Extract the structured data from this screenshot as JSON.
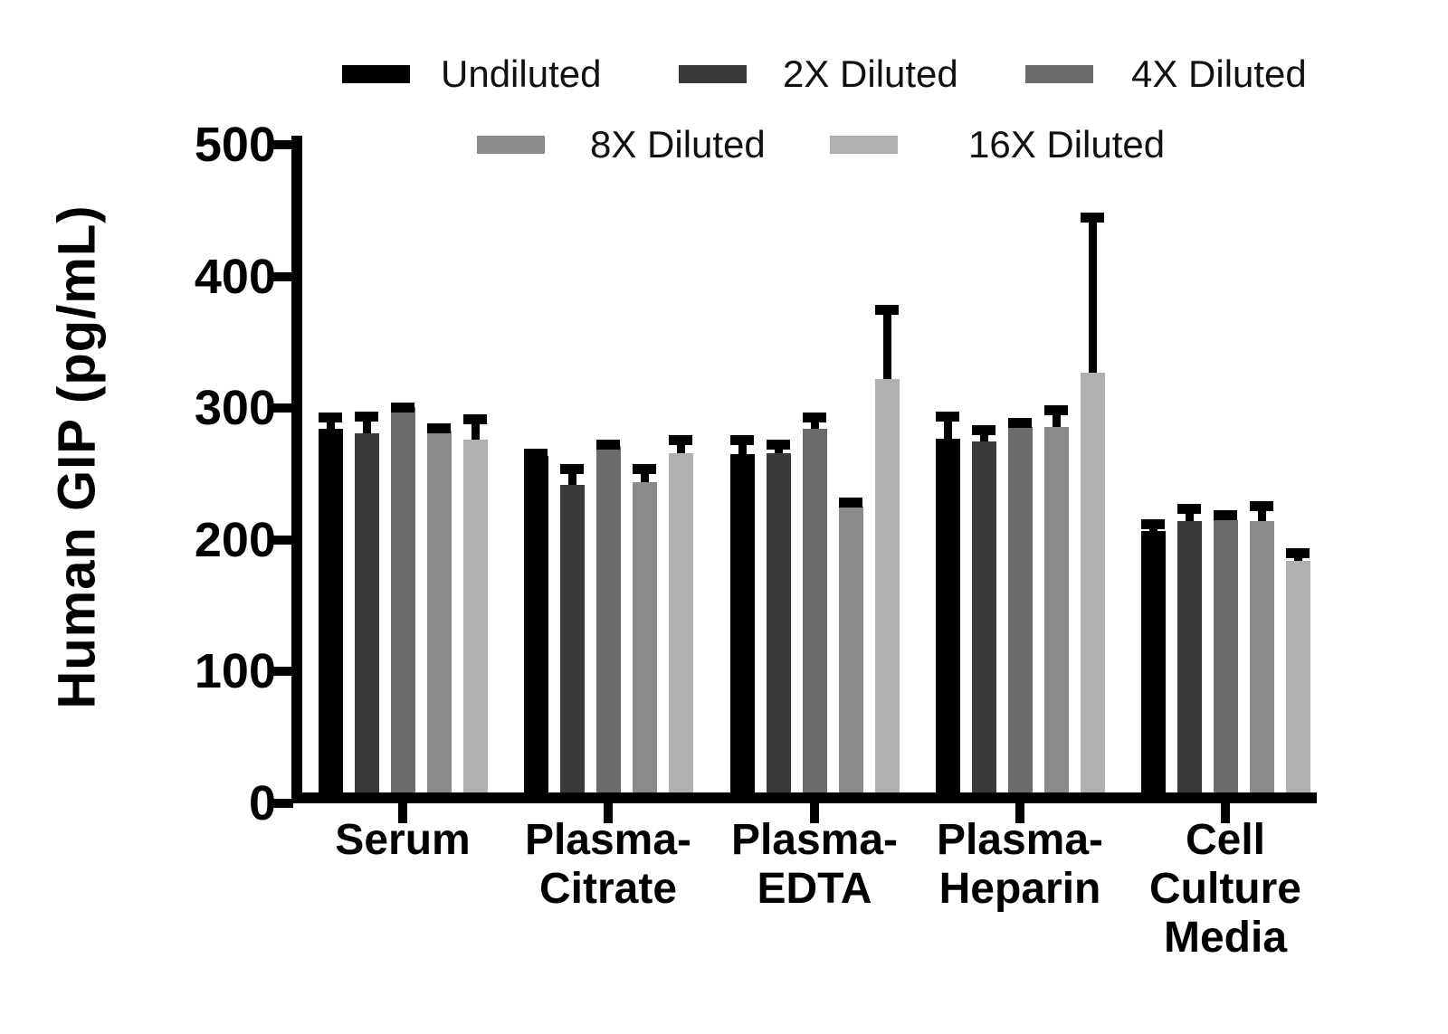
{
  "chart_data": {
    "type": "bar",
    "title": "",
    "xlabel": "",
    "ylabel": "Human GIP (pg/mL)",
    "ylim": [
      0,
      500
    ],
    "y_ticks": [
      0,
      100,
      200,
      300,
      400,
      500
    ],
    "grid": false,
    "legend_position": "top",
    "error_bars": "upper SD, black stems with caps",
    "categories": [
      "Serum",
      "Plasma-Citrate",
      "Plasma-EDTA",
      "Plasma-Heparin",
      "Cell Culture Media"
    ],
    "categories_display": [
      "Serum",
      "Plasma-\nCitrate",
      "Plasma-\nEDTA",
      "Plasma-\nHeparin",
      "Cell\nCulture\nMedia"
    ],
    "series": [
      {
        "name": "Undiluted",
        "color": "#000000",
        "values": [
          284,
          264,
          265,
          277,
          207
        ],
        "errors": [
          11,
          4,
          13,
          19,
          7
        ]
      },
      {
        "name": "2X Diluted",
        "color": "#3a3a3a",
        "values": [
          281,
          242,
          266,
          275,
          214
        ],
        "errors": [
          15,
          14,
          9,
          11,
          12
        ]
      },
      {
        "name": "4X Diluted",
        "color": "#6b6b6b",
        "values": [
          301,
          271,
          284,
          286,
          215
        ],
        "errors": [
          2,
          4,
          11,
          5,
          6
        ]
      },
      {
        "name": "8X Diluted",
        "color": "#8a8a8a",
        "values": [
          283,
          244,
          225,
          286,
          214
        ],
        "errors": [
          4,
          12,
          6,
          15,
          14
        ]
      },
      {
        "name": "16X Diluted",
        "color": "#b0b0b0",
        "values": [
          276,
          266,
          322,
          327,
          184
        ],
        "errors": [
          18,
          12,
          55,
          120,
          8
        ]
      }
    ]
  }
}
